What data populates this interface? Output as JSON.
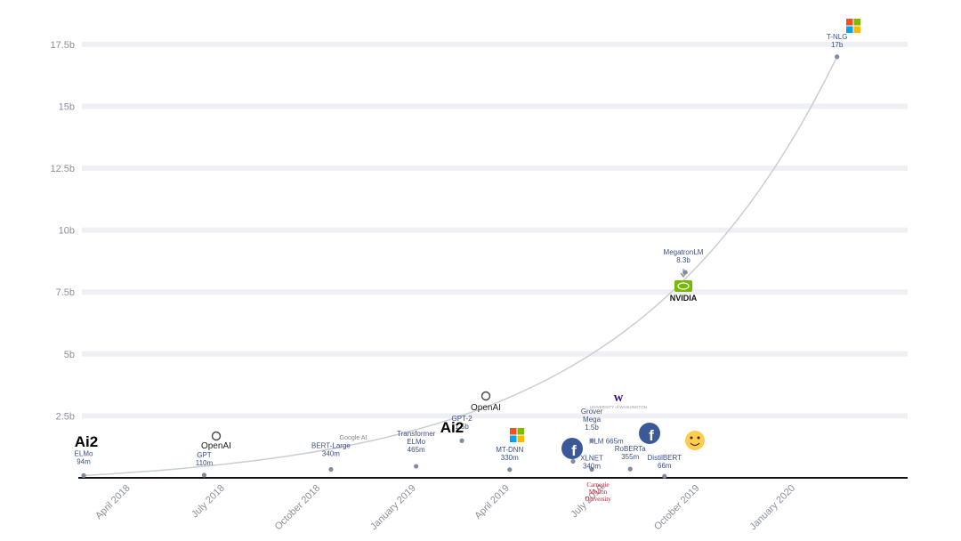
{
  "chart_data": {
    "type": "scatter",
    "title": "",
    "xlabel": "",
    "ylabel": "",
    "y_unit_suffix": "b",
    "ylim": [
      0,
      18.5
    ],
    "xlim": [
      "2018-02-15",
      "2020-03-01"
    ],
    "y_ticks": [
      {
        "value": 2.5,
        "label": "2.5b"
      },
      {
        "value": 5,
        "label": "5b"
      },
      {
        "value": 7.5,
        "label": "7.5b"
      },
      {
        "value": 10,
        "label": "10b"
      },
      {
        "value": 12.5,
        "label": "12.5b"
      },
      {
        "value": 15,
        "label": "15b"
      },
      {
        "value": 17.5,
        "label": "17.5b"
      }
    ],
    "x_ticks": [
      {
        "date": "2018-04-01",
        "label": "April 2018"
      },
      {
        "date": "2018-07-01",
        "label": "July 2018"
      },
      {
        "date": "2018-10-01",
        "label": "October 2018"
      },
      {
        "date": "2019-01-01",
        "label": "January 2019"
      },
      {
        "date": "2019-04-01",
        "label": "April 2019"
      },
      {
        "date": "2019-07-01",
        "label": "July 2019"
      },
      {
        "date": "2019-10-01",
        "label": "October 2019"
      },
      {
        "date": "2020-01-01",
        "label": "January 2020"
      }
    ],
    "grid": true,
    "points": [
      {
        "name": "ELMo",
        "size_label": "94m",
        "date": "2018-02-15",
        "value": 0.094,
        "org": "Ai2"
      },
      {
        "name": "GPT",
        "size_label": "110m",
        "date": "2018-06-11",
        "value": 0.11,
        "org": "OpenAI"
      },
      {
        "name": "BERT-Large",
        "size_label": "340m",
        "date": "2018-10-11",
        "value": 0.34,
        "org": "Google"
      },
      {
        "name": "Transformer ELMo",
        "size_label": "465m",
        "date": "2019-01-01",
        "value": 0.465,
        "org": "Ai2"
      },
      {
        "name": "GPT-2",
        "size_label": "1.5b",
        "date": "2019-02-14",
        "value": 1.5,
        "org": "OpenAI"
      },
      {
        "name": "MT-DNN",
        "size_label": "330m",
        "date": "2019-04-01",
        "value": 0.33,
        "org": "Microsoft"
      },
      {
        "name": "XLM",
        "size_label": "665m",
        "date": "2019-06-01",
        "value": 0.665,
        "org": "Facebook"
      },
      {
        "name": "XLNET",
        "size_label": "340m",
        "date": "2019-06-19",
        "value": 0.34,
        "org": "Carnegie Mellon University"
      },
      {
        "name": "Grover-Mega",
        "size_label": "1.5b",
        "date": "2019-06-19",
        "value": 1.5,
        "org": "University of Washington"
      },
      {
        "name": "RoBERTa",
        "size_label": "355m",
        "date": "2019-07-26",
        "value": 0.355,
        "org": "Facebook"
      },
      {
        "name": "DistilBERT",
        "size_label": "66m",
        "date": "2019-08-28",
        "value": 0.066,
        "org": "Hugging Face"
      },
      {
        "name": "MegatronLM",
        "size_label": "8.3b",
        "date": "2019-09-17",
        "value": 8.3,
        "org": "NVIDIA"
      },
      {
        "name": "T-NLG",
        "size_label": "17b",
        "date": "2020-02-10",
        "value": 17,
        "org": "Microsoft"
      }
    ]
  },
  "logos": {
    "openai": "OpenAI",
    "ai2": "Ai2",
    "google": "Google AI",
    "nvidia": "NVIDIA",
    "uw": "W",
    "uw_caption": "UNIVERSITY of WASHINGTON",
    "cmu": [
      "Carnegie",
      "Mellon",
      "University"
    ]
  },
  "colors": {
    "label": "#3d4f86",
    "ai2": "#1e7fcf",
    "facebook": "#3b5998",
    "nvidia_green": "#76b900",
    "hf_yellow": "#ffcc4d",
    "cmu_red": "#b01c2e",
    "ms": [
      "#f25022",
      "#7fba00",
      "#00a4ef",
      "#ffb900"
    ]
  }
}
